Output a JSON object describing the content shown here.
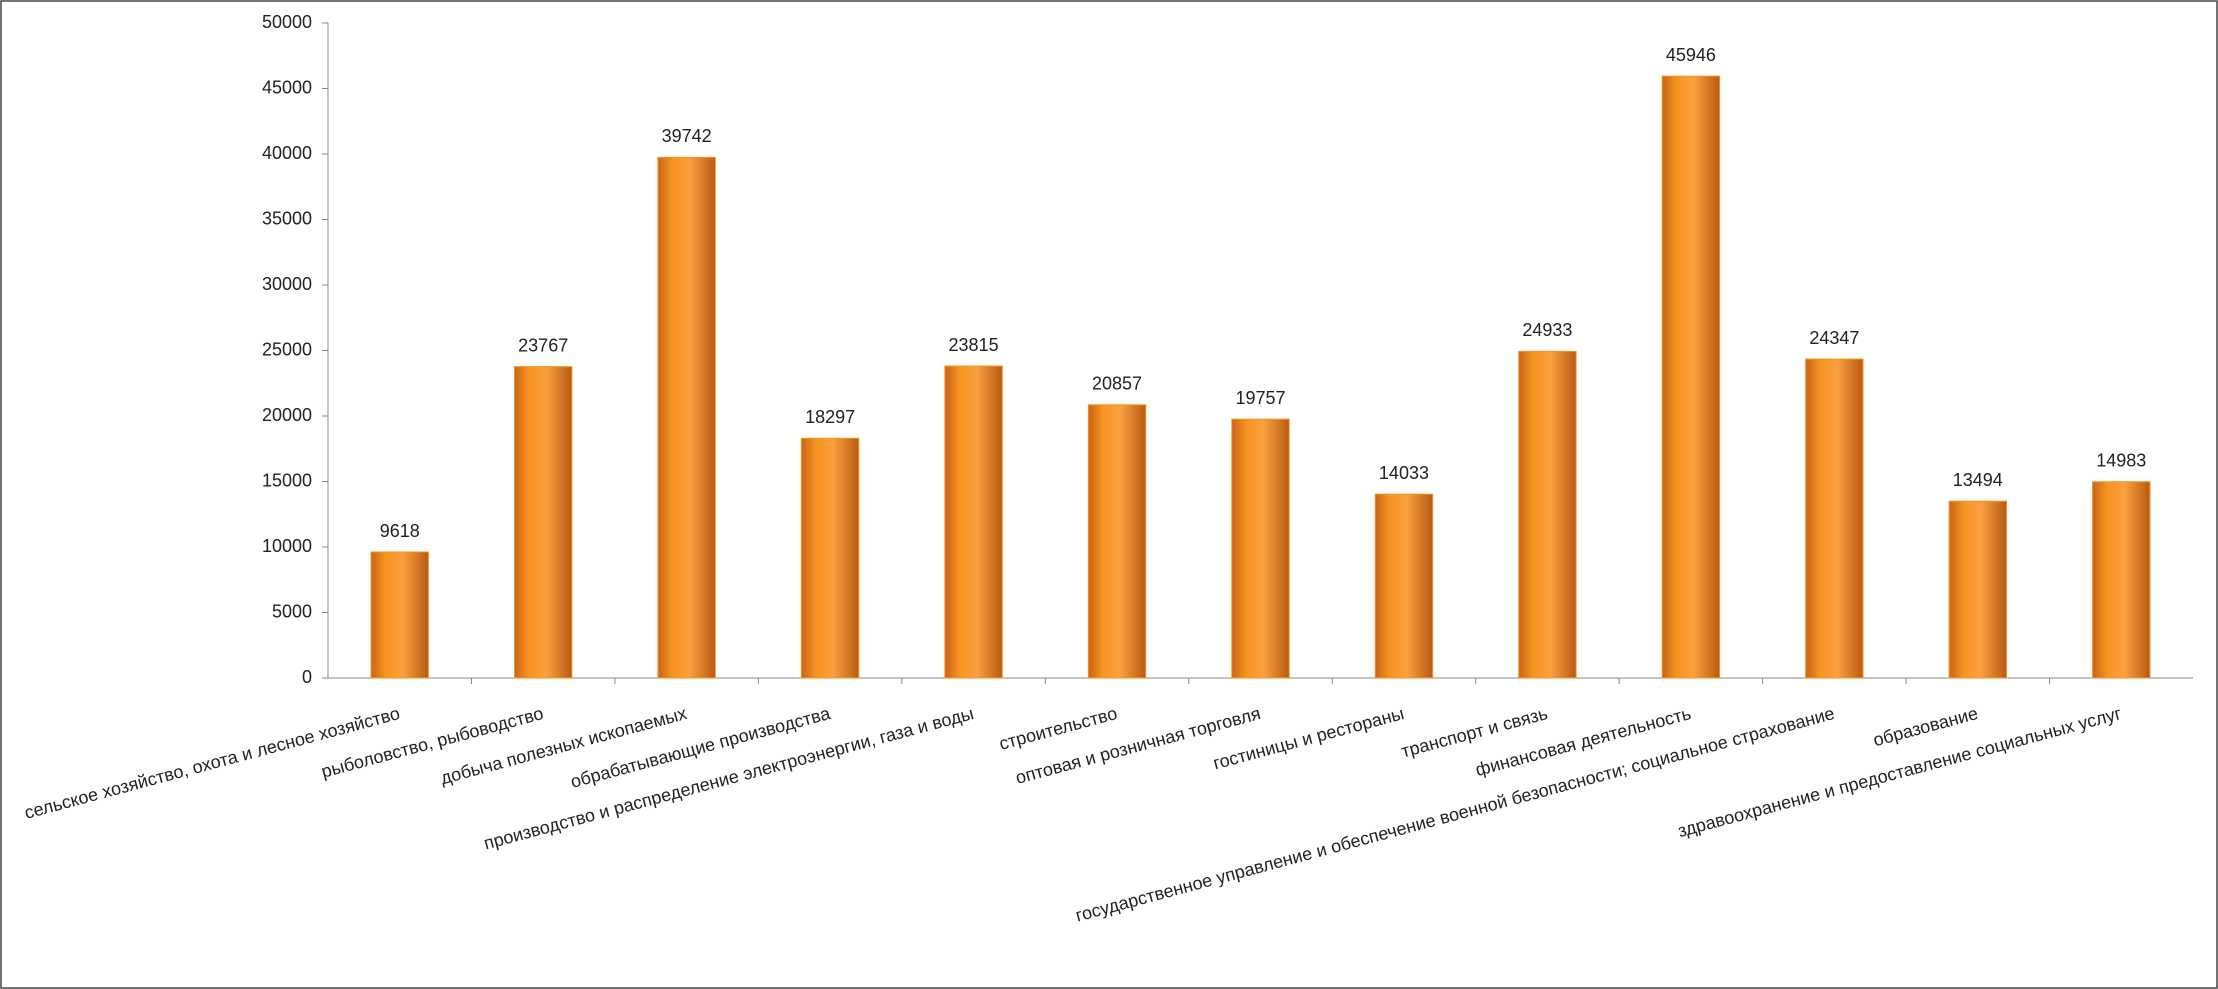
{
  "chart_data": {
    "type": "bar",
    "categories": [
      "сельское хозяйство, охота и лесное хозяйство",
      "рыболовство, рыбоводство",
      "добыча полезных ископаемых",
      "обрабатывающие производства",
      "производство и распределение электроэнергии,  газа и воды",
      "строительство",
      "оптовая и розничная торговля",
      "гостиницы и рестораны",
      "транспорт и связь",
      "финансовая деятельность",
      "государственное управление и обеспечение  военной безопасности; социальное страхование",
      "образование",
      "здравоохранение и предоставление социальных услуг"
    ],
    "values": [
      9618,
      23767,
      39742,
      18297,
      23815,
      20857,
      19757,
      14033,
      24933,
      45946,
      24347,
      13494,
      14983
    ],
    "color": "#f7931e",
    "ylim": [
      0,
      50000
    ],
    "yticks": [
      0,
      5000,
      10000,
      15000,
      20000,
      25000,
      30000,
      35000,
      40000,
      45000,
      50000
    ],
    "grid": false
  }
}
